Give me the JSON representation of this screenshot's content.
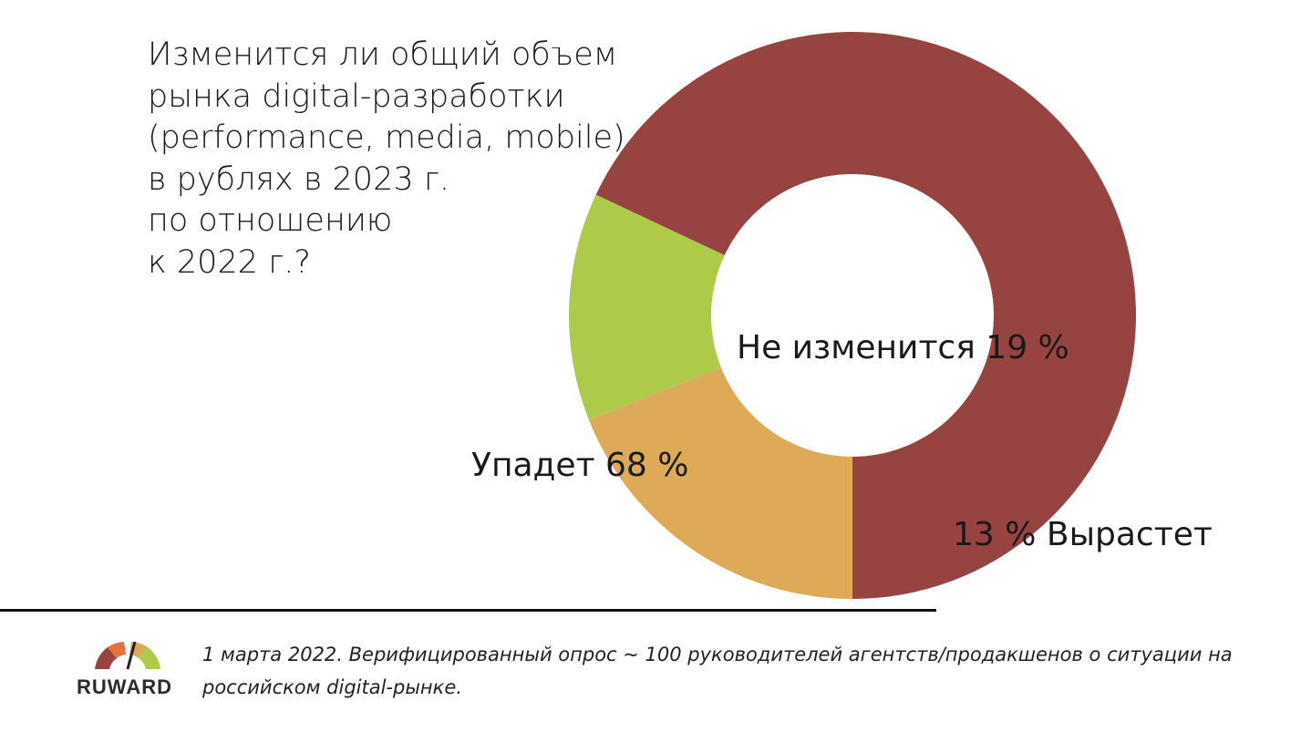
{
  "chart_data": {
    "type": "pie",
    "title": "Изменится ли общий объем\nрынка digital-разработки\n(performance, media, mobile)\nв рублях в 2023 г.\nпо отношению\nк 2022 г.?",
    "slices": [
      {
        "label": "Упадет  68 %",
        "value": 68,
        "color": "#974342"
      },
      {
        "label": "Не изменится 19 %",
        "value": 19,
        "color": "#dfaa58"
      },
      {
        "label": "13 % Вырастет",
        "value": 13,
        "color": "#adca49"
      }
    ]
  },
  "footer": {
    "note": " 1 марта 2022. Верифицированный опрос ~ 100 руководителей агентств/продакшенов о ситуации на российском digital-рынке.",
    "logo_text": "RUWARD"
  }
}
